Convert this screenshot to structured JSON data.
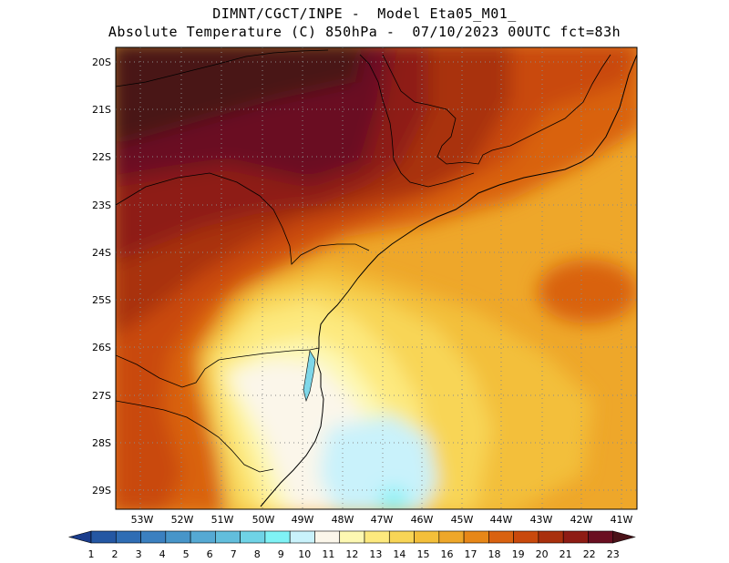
{
  "header": {
    "line1": "DIMNT/CGCT/INPE -  Model Eta05_M01_",
    "line2": "Absolute Temperature (C) 850hPa -  07/10/2023 00UTC fct=83h"
  },
  "map": {
    "lat_labels": [
      "20S",
      "21S",
      "22S",
      "23S",
      "24S",
      "25S",
      "26S",
      "27S",
      "28S",
      "29S"
    ],
    "lon_labels": [
      "53W",
      "52W",
      "51W",
      "50W",
      "49W",
      "48W",
      "47W",
      "46W",
      "45W",
      "44W",
      "43W",
      "42W",
      "41W"
    ]
  },
  "colorbar": {
    "labels": [
      "1",
      "2",
      "3",
      "4",
      "5",
      "6",
      "7",
      "8",
      "9",
      "10",
      "11",
      "12",
      "13",
      "14",
      "15",
      "16",
      "17",
      "18",
      "19",
      "20",
      "21",
      "22",
      "23"
    ],
    "colors": [
      "#1a3d8c",
      "#2457a3",
      "#2f6db4",
      "#3b80c0",
      "#4795c9",
      "#55a9d3",
      "#62bedc",
      "#6fd3e6",
      "#7ff2f5",
      "#c9f2fb",
      "#fbf6ea",
      "#fdf8b2",
      "#fde97e",
      "#f8d556",
      "#f3bf3a",
      "#eea72a",
      "#e78718",
      "#d96210",
      "#c9490c",
      "#a9300d",
      "#8e1c14",
      "#6a0f21",
      "#4a1218"
    ]
  }
}
